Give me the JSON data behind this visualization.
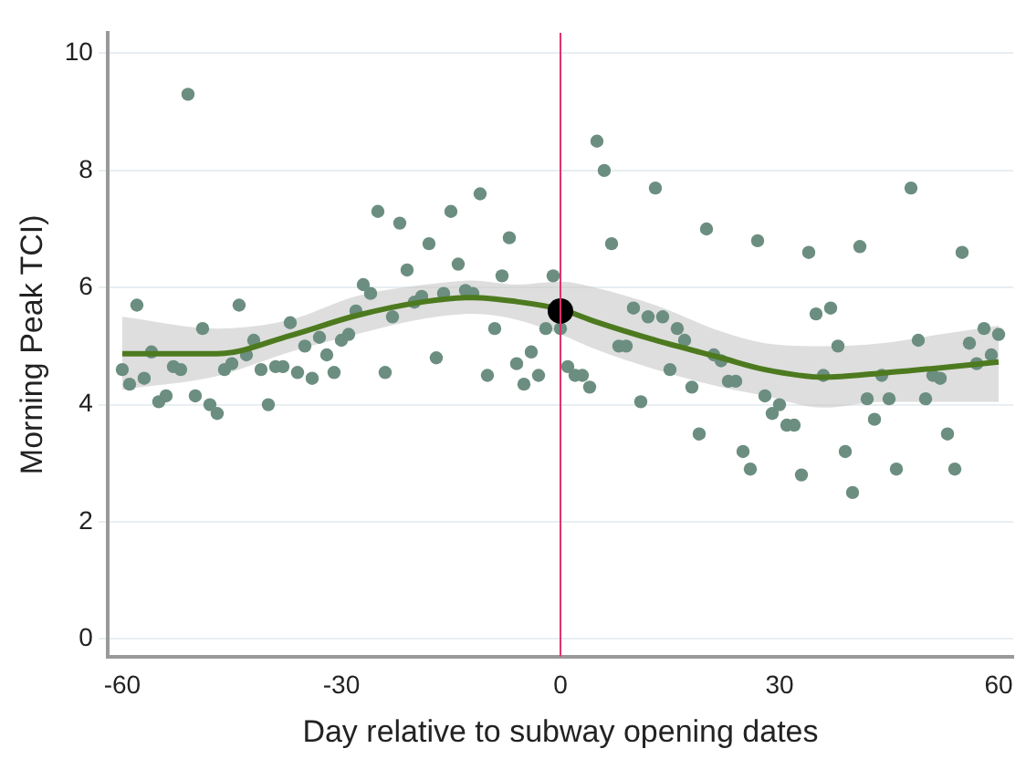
{
  "chart_data": {
    "type": "scatter",
    "xlabel": "Day relative to subway opening dates",
    "ylabel": "Morning Peak TCI)",
    "xlim": [
      -62,
      62
    ],
    "xticks": [
      -60,
      -30,
      0,
      30,
      60
    ],
    "ylim": [
      -0.3,
      10.35
    ],
    "yticks": [
      0,
      2,
      4,
      6,
      8,
      10
    ],
    "grid": "y",
    "ref_lines": [
      {
        "axis": "x",
        "value": 0,
        "color": "#e0306a",
        "line_style": "solid"
      }
    ],
    "series": [
      {
        "marker": "circle",
        "color": "#6b8e80",
        "x": [
          -60,
          -59,
          -58,
          -57,
          -56,
          -55,
          -54,
          -53,
          -52,
          -51,
          -50,
          -49,
          -48,
          -47,
          -46,
          -45,
          -44,
          -43,
          -42,
          -41,
          -40,
          -39,
          -38,
          -37,
          -36,
          -35,
          -34,
          -33,
          -32,
          -31,
          -30,
          -29,
          -28,
          -27,
          -26,
          -25,
          -24,
          -23,
          -22,
          -21,
          -20,
          -19,
          -18,
          -17,
          -16,
          -15,
          -14,
          -13,
          -12,
          -11,
          -10,
          -9,
          -8,
          -7,
          -6,
          -5,
          -4,
          -3,
          -2,
          -1,
          0,
          1,
          2,
          3,
          4,
          5,
          6,
          7,
          8,
          9,
          10,
          11,
          12,
          13,
          14,
          15,
          16,
          17,
          18,
          19,
          20,
          21,
          22,
          23,
          24,
          25,
          26,
          27,
          28,
          29,
          30,
          31,
          32,
          33,
          34,
          35,
          36,
          37,
          38,
          39,
          40,
          41,
          42,
          43,
          44,
          45,
          46,
          48,
          49,
          50,
          51,
          52,
          53,
          54,
          55,
          56,
          57,
          58,
          59,
          60
        ],
        "values": [
          4.6,
          4.35,
          5.7,
          4.45,
          4.9,
          4.05,
          4.15,
          4.65,
          4.6,
          9.3,
          4.15,
          5.3,
          4.0,
          3.85,
          4.6,
          4.7,
          5.7,
          4.85,
          5.1,
          4.6,
          4.0,
          4.65,
          4.65,
          5.4,
          4.55,
          5.0,
          4.45,
          5.15,
          4.85,
          4.55,
          5.1,
          5.2,
          5.6,
          6.05,
          5.9,
          7.3,
          4.55,
          5.5,
          7.1,
          6.3,
          5.75,
          5.85,
          6.75,
          4.8,
          5.9,
          7.3,
          6.4,
          5.95,
          5.9,
          7.6,
          4.5,
          5.3,
          6.2,
          6.85,
          4.7,
          4.35,
          4.9,
          4.5,
          5.3,
          6.2,
          5.3,
          4.65,
          4.5,
          4.5,
          4.3,
          8.5,
          8.0,
          6.75,
          5.0,
          5.0,
          5.65,
          4.05,
          5.5,
          7.7,
          5.5,
          4.6,
          5.3,
          5.1,
          4.3,
          3.5,
          7.0,
          4.85,
          4.75,
          4.4,
          4.4,
          3.2,
          2.9,
          6.8,
          4.15,
          3.85,
          4.0,
          3.65,
          3.65,
          2.8,
          6.6,
          5.55,
          4.5,
          5.65,
          5.0,
          3.2,
          2.5,
          6.7,
          4.1,
          3.75,
          4.5,
          4.1,
          2.9,
          7.7,
          5.1,
          4.1,
          4.5,
          4.45,
          3.5,
          2.9,
          6.6,
          5.05,
          4.7,
          5.3,
          4.85,
          5.2
        ]
      },
      {
        "type": "line",
        "marker": "none",
        "color": "#4d7a1f",
        "x": [
          -60,
          -47,
          -37,
          -28,
          -18.6,
          -12,
          -6,
          0,
          4.7,
          13,
          22,
          28,
          36,
          44,
          52,
          60
        ],
        "values": [
          4.87,
          4.87,
          5.18,
          5.52,
          5.76,
          5.83,
          5.76,
          5.63,
          5.42,
          5.1,
          4.8,
          4.6,
          4.47,
          4.54,
          4.63,
          4.73
        ],
        "lower": [
          4.26,
          4.49,
          4.9,
          5.2,
          5.47,
          5.55,
          5.45,
          5.2,
          4.95,
          4.6,
          4.3,
          4.15,
          3.95,
          4.05,
          4.05,
          4.05
        ],
        "upper": [
          5.5,
          5.3,
          5.45,
          5.85,
          6.05,
          6.12,
          6.05,
          6.1,
          6.0,
          5.7,
          5.25,
          5.05,
          5.0,
          5.05,
          5.2,
          5.35
        ]
      },
      {
        "marker": "circle",
        "color": "#000000",
        "x": [
          0
        ],
        "values": [
          5.6
        ]
      }
    ]
  }
}
